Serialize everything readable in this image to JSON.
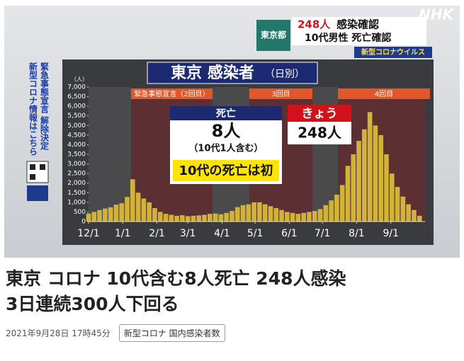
{
  "broadcast": {
    "logo": "NHK",
    "place": "東京都",
    "line1_count": "248人",
    "line1_text": "感染確認",
    "line2": "10代男性 死亡確認",
    "topic": "新型コロナウイルス",
    "side_notice": "緊急事態宣言 解除決定",
    "side_link": "新型コロナ情報はこちら"
  },
  "chart_data": {
    "type": "bar",
    "title": "東京 感染者",
    "subtitle": "（日別）",
    "y_unit": "（人）",
    "xlim": [
      0,
      305
    ],
    "xticks": [
      {
        "value": 0,
        "label": "12/1"
      },
      {
        "value": 31,
        "label": "1/1"
      },
      {
        "value": 62,
        "label": "2/1"
      },
      {
        "value": 90,
        "label": "3/1"
      },
      {
        "value": 121,
        "label": "4/1"
      },
      {
        "value": 151,
        "label": "5/1"
      },
      {
        "value": 182,
        "label": "6/1"
      },
      {
        "value": 212,
        "label": "7/1"
      },
      {
        "value": 243,
        "label": "8/1"
      },
      {
        "value": 274,
        "label": "9/1"
      }
    ],
    "ylim": [
      0,
      7000
    ],
    "yticks": [
      0,
      500,
      {
        "value": 1000,
        "label": "1,000"
      },
      {
        "value": 1500,
        "label": "1,500"
      },
      {
        "value": 2000,
        "label": "2,000"
      },
      {
        "value": 2500,
        "label": "2,500"
      },
      {
        "value": 3000,
        "label": "3,000"
      },
      {
        "value": 3500,
        "label": "3,500"
      },
      {
        "value": 4000,
        "label": "4,000"
      },
      {
        "value": 4500,
        "label": "4,500"
      },
      {
        "value": 5000,
        "label": "5,000"
      },
      {
        "value": 5500,
        "label": "5,500"
      },
      {
        "value": 6000,
        "label": "6,000"
      },
      {
        "value": 6500,
        "label": "6,500"
      },
      {
        "value": 7000,
        "label": "7,000"
      }
    ],
    "x": [
      0,
      5,
      10,
      15,
      20,
      25,
      30,
      35,
      40,
      45,
      50,
      55,
      60,
      65,
      70,
      75,
      80,
      85,
      90,
      95,
      100,
      105,
      110,
      115,
      120,
      125,
      130,
      135,
      140,
      145,
      150,
      155,
      160,
      165,
      170,
      175,
      180,
      185,
      190,
      195,
      200,
      205,
      210,
      215,
      220,
      225,
      230,
      235,
      240,
      245,
      250,
      255,
      260,
      265,
      270,
      275,
      280,
      285,
      290,
      295,
      300
    ],
    "values": [
      420,
      500,
      600,
      680,
      740,
      880,
      950,
      1280,
      2200,
      1500,
      1200,
      1000,
      700,
      500,
      400,
      350,
      300,
      330,
      280,
      300,
      320,
      350,
      400,
      420,
      380,
      450,
      550,
      750,
      850,
      900,
      1000,
      1000,
      900,
      800,
      700,
      600,
      500,
      450,
      400,
      450,
      500,
      550,
      650,
      850,
      1100,
      1400,
      1900,
      2900,
      3500,
      4200,
      4800,
      5700,
      5000,
      4500,
      3500,
      2500,
      1800,
      1300,
      900,
      600,
      300
    ],
    "color": "#d2b33a",
    "periods": [
      {
        "label": "緊急事態宣言（2回目）"
      },
      {
        "label": "3回目"
      },
      {
        "label": "4回目"
      }
    ],
    "death_box": {
      "label": "死亡",
      "count": "8人",
      "note": "（10代1人含む）",
      "highlight": "10代の死亡は初"
    },
    "today_box": {
      "label": "きょう",
      "count": "248人"
    }
  },
  "article": {
    "title_lines": [
      "東京 コロナ 10代含む8人死亡 248人感染",
      "3日連続300人下回る"
    ],
    "date": "2021年9月28日 17時45分",
    "tag": "新型コロナ 国内感染者数"
  }
}
